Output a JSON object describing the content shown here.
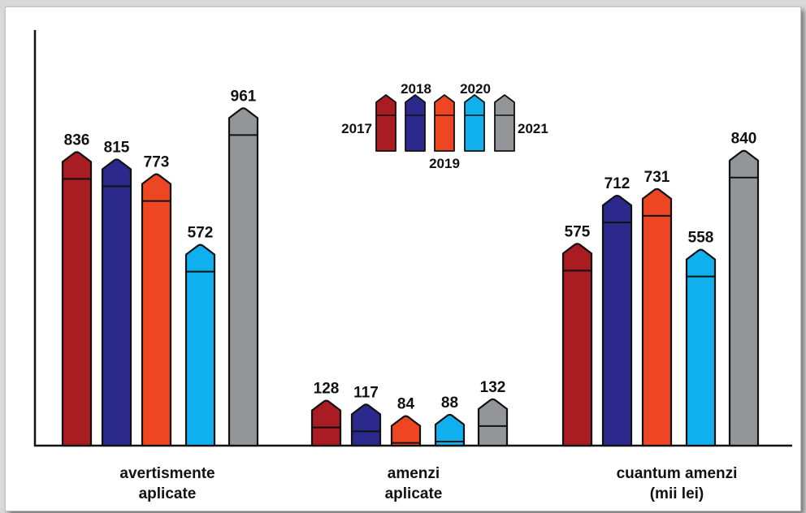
{
  "chart_data": {
    "type": "bar",
    "categories": [
      [
        "avertismente",
        "aplicate"
      ],
      [
        "amenzi",
        "aplicate"
      ],
      [
        "cuantum amenzi",
        "(mii lei)"
      ]
    ],
    "series": [
      {
        "name": "2017",
        "color": "#a81c22",
        "values": [
          836,
          128,
          575
        ]
      },
      {
        "name": "2018",
        "color": "#2b2a8c",
        "values": [
          815,
          117,
          712
        ]
      },
      {
        "name": "2019",
        "color": "#ee4623",
        "values": [
          773,
          84,
          731
        ]
      },
      {
        "name": "2020",
        "color": "#10b0ee",
        "values": [
          572,
          88,
          558
        ]
      },
      {
        "name": "2021",
        "color": "#939598",
        "values": [
          961,
          132,
          840
        ]
      }
    ],
    "ylim": [
      0,
      1100
    ],
    "legend_position": "top-center",
    "grid": false
  }
}
